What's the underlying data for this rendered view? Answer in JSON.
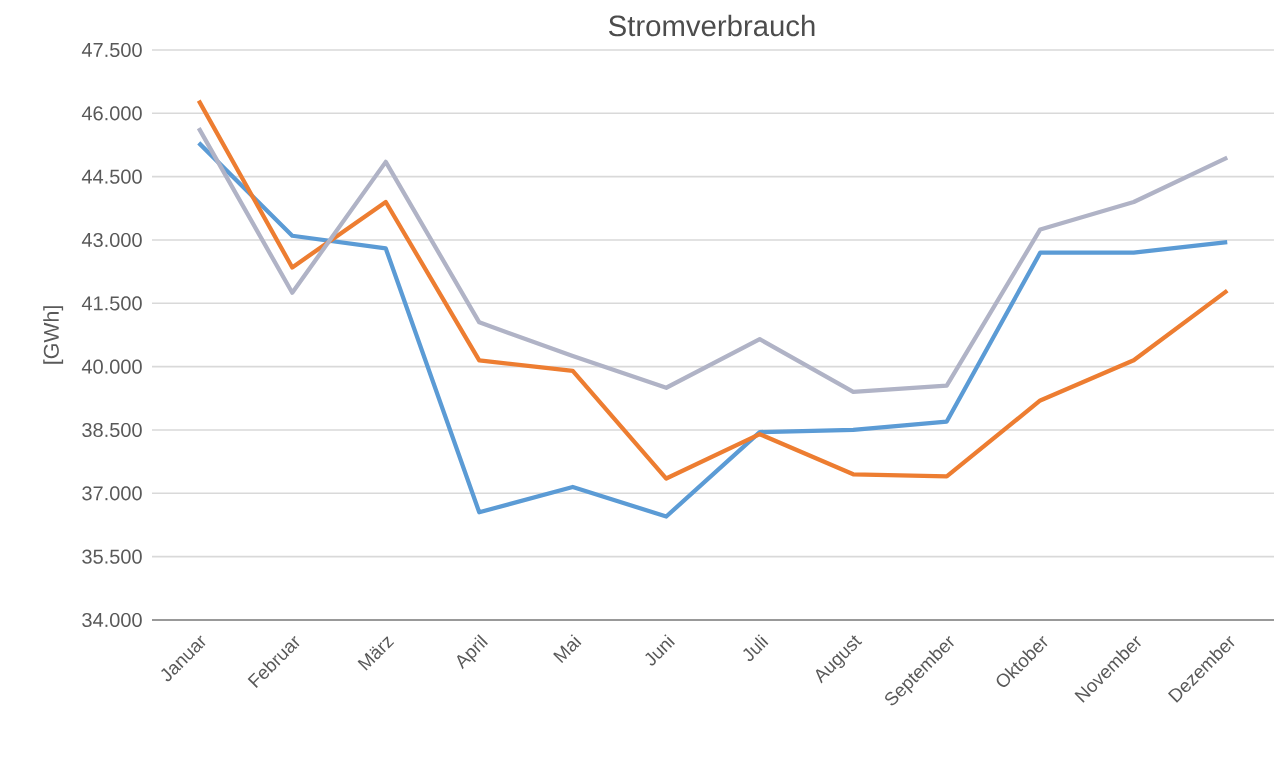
{
  "chart_data": {
    "type": "line",
    "title": "Stromverbrauch",
    "ylabel": "[GWh]",
    "categories": [
      "Januar",
      "Februar",
      "März",
      "April",
      "Mai",
      "Juni",
      "Juli",
      "August",
      "September",
      "Oktober",
      "November",
      "Dezember"
    ],
    "series": [
      {
        "color": "#5b9bd5",
        "values": [
          45300,
          43100,
          42800,
          36550,
          37150,
          36450,
          38450,
          38500,
          38700,
          42700,
          42700,
          42950
        ]
      },
      {
        "color": "#ed7d31",
        "values": [
          46300,
          42350,
          43900,
          40150,
          39900,
          37350,
          38400,
          37450,
          37400,
          39200,
          40150,
          41800
        ]
      },
      {
        "color": "#b0b3c6",
        "values": [
          45650,
          41750,
          44850,
          41050,
          40250,
          39500,
          40650,
          39400,
          39550,
          43250,
          43900,
          44950
        ]
      }
    ],
    "ylim": [
      34000,
      47500
    ],
    "yticks": [
      {
        "value": 34000,
        "label": "34.000"
      },
      {
        "value": 35500,
        "label": "35.500"
      },
      {
        "value": 37000,
        "label": "37.000"
      },
      {
        "value": 38500,
        "label": "38.500"
      },
      {
        "value": 40000,
        "label": "40.000"
      },
      {
        "value": 41500,
        "label": "41.500"
      },
      {
        "value": 43000,
        "label": "43.000"
      },
      {
        "value": 44500,
        "label": "44.500"
      },
      {
        "value": 46000,
        "label": "46.000"
      },
      {
        "value": 47500,
        "label": "47.500"
      }
    ],
    "grid": "y",
    "legend": false,
    "marker": "none",
    "line_style": "solid"
  }
}
